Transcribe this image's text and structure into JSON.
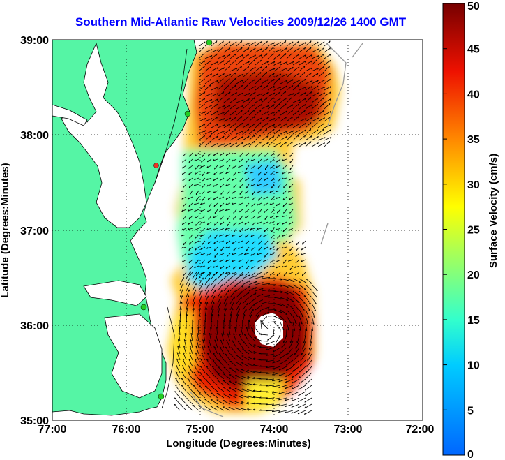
{
  "title": "Southern Mid-Atlantic Raw Velocities 2009/12/26 1400 GMT",
  "xlabel": "Longitude (Degrees:Minutes)",
  "ylabel": "Latitude (Degrees:Minutes)",
  "colorbar_label": "Surface Velocity (cm/s)",
  "x_ticks": [
    "77:00",
    "76:00",
    "75:00",
    "74:00",
    "73:00",
    "72:00"
  ],
  "y_ticks": [
    "39:00",
    "38:00",
    "37:00",
    "36:00",
    "35:00"
  ],
  "colorbar_ticks": [
    "0",
    "5",
    "10",
    "15",
    "20",
    "25",
    "30",
    "35",
    "40",
    "45",
    "50"
  ],
  "colors": {
    "land": "#55f5a5",
    "title": "#0000ff",
    "vector": "#000000",
    "station": "#22cc22",
    "station_alt": "#ee3322"
  },
  "chart_data": {
    "type": "heatmap",
    "title": "Southern Mid-Atlantic Raw Velocities 2009/12/26 1400 GMT",
    "xlabel": "Longitude (Degrees:Minutes)",
    "ylabel": "Latitude (Degrees:Minutes)",
    "xlim": [
      -77,
      -72
    ],
    "ylim": [
      35,
      39
    ],
    "color_scale": {
      "label": "Surface Velocity (cm/s)",
      "min": 0,
      "max": 50,
      "colormap": "jet"
    },
    "grid": true,
    "zones": [
      {
        "lon": [
          -74.6,
          -73.7
        ],
        "lat": [
          38.0,
          38.7
        ],
        "speed": 45
      },
      {
        "lon": [
          -74.5,
          -73.4
        ],
        "lat": [
          35.2,
          36.5
        ],
        "speed": 48
      },
      {
        "lon": [
          -74.4,
          -74.0
        ],
        "lat": [
          36.6,
          37.3
        ],
        "speed": 14
      }
    ]
  }
}
